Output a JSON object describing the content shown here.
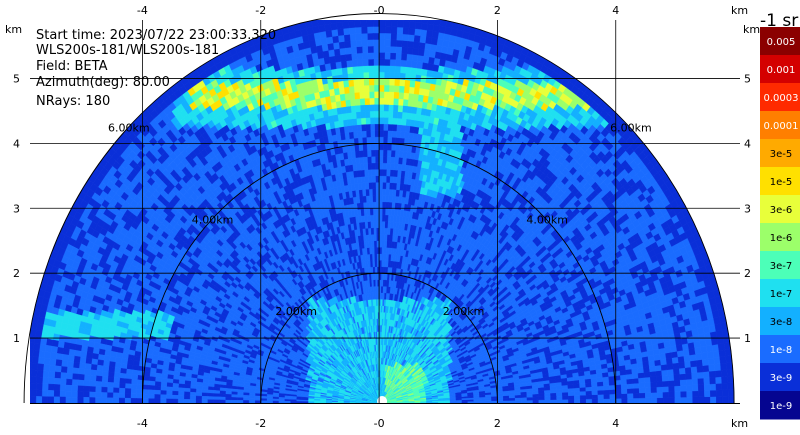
{
  "info": {
    "start_time": "Start time: 2023/07/22 23:00:33.320",
    "instrument": "WLS200s-181/WLS200s-181",
    "field": "Field: BETA",
    "azimuth": "Azimuth(deg): 80.00",
    "nrays": "NRays: 180"
  },
  "colorbar": {
    "unit_label": "-1 sr",
    "labels": [
      "0.005",
      "0.001",
      "0.0003",
      "0.0001",
      "3e-5",
      "1e-5",
      "3e-6",
      "1e-6",
      "3e-7",
      "1e-7",
      "3e-8",
      "1e-8",
      "3e-9",
      "1e-9"
    ],
    "colors": [
      "#8b0000",
      "#d40000",
      "#ff2a00",
      "#ff7f00",
      "#ffaa00",
      "#ffe000",
      "#e8ff3a",
      "#9cff6a",
      "#4cffb8",
      "#1fe0f0",
      "#13b0ff",
      "#1a6cff",
      "#0a2fd8",
      "#050590"
    ]
  },
  "chart_data": {
    "type": "heatmap",
    "title": "",
    "xlabel": "km",
    "ylabel": "km",
    "xlim": [
      -5.9,
      6.1
    ],
    "ylim": [
      0,
      5.9
    ],
    "x_ticks": [
      -4,
      -2,
      0,
      2,
      4
    ],
    "x_tick_labels": [
      "-4",
      "-2",
      "-0",
      "2",
      "4"
    ],
    "y_ticks": [
      1,
      2,
      3,
      4,
      5
    ],
    "y_tick_labels": [
      "1",
      "2",
      "3",
      "4",
      "5"
    ],
    "axis_unit_labels": [
      "km",
      "km",
      "km",
      "km"
    ],
    "grid": true,
    "range_rings_km": [
      2,
      4,
      6
    ],
    "range_ring_labels": [
      "2.00km",
      "4.00km",
      "6.00km"
    ],
    "max_range_km": 6.0,
    "field": "BETA",
    "azimuth_deg": 80.0,
    "nrays": 180
  }
}
